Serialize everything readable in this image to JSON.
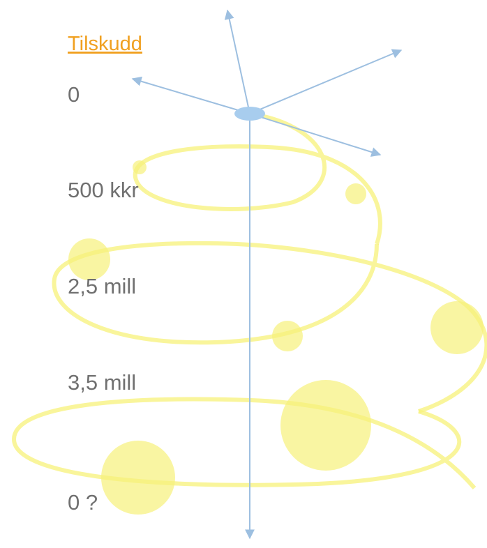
{
  "title": "Tilskudd",
  "levels": [
    "0",
    "500 kkr",
    "2,5 mill",
    "3,5 mill",
    "0 ?"
  ]
}
